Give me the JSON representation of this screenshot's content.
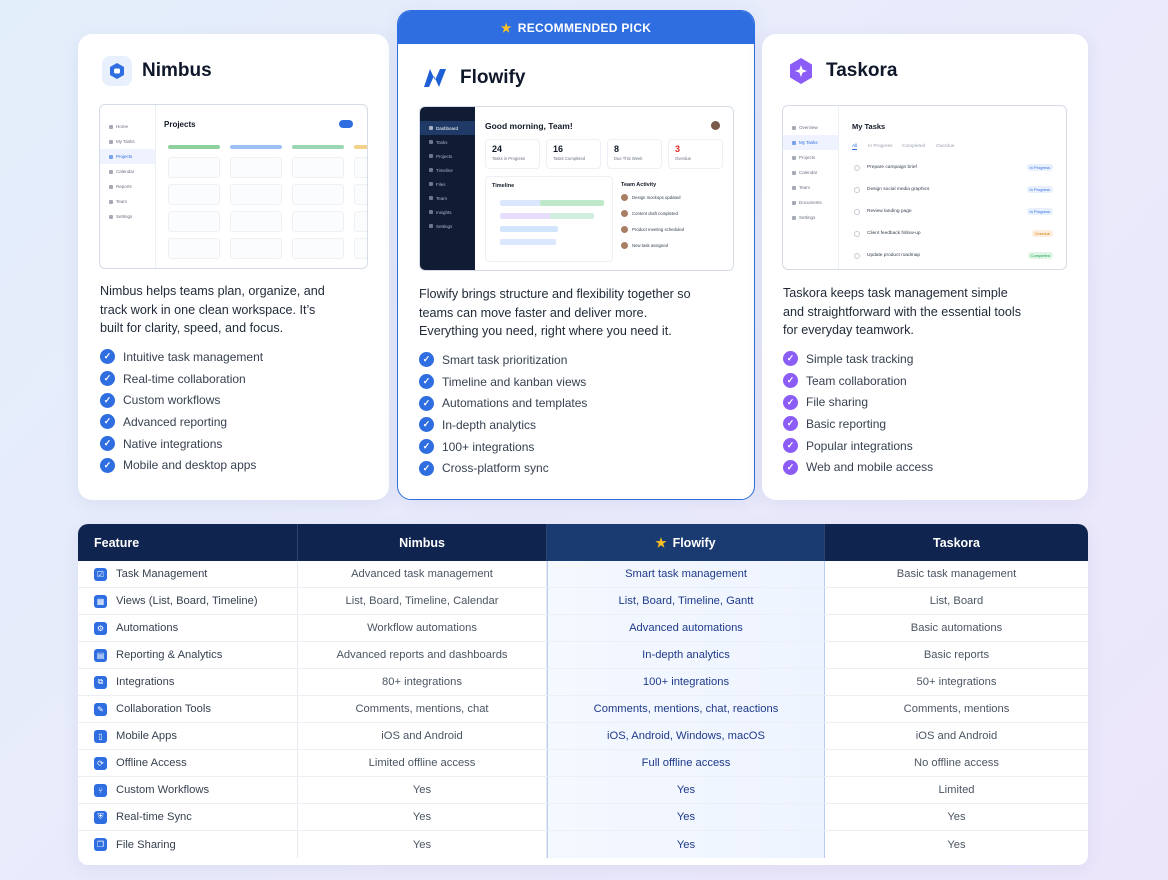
{
  "nimbus": {
    "name": "Nimbus",
    "description": "Nimbus helps teams plan, organize, and track work in one clean workspace. It’s built for clarity, speed, and focus.",
    "features": [
      "Intuitive task management",
      "Real-time collaboration",
      "Custom workflows",
      "Advanced reporting",
      "Native integrations",
      "Mobile and desktop apps"
    ],
    "preview": {
      "sidebar": [
        "Home",
        "My Tasks",
        "Projects",
        "Calendar",
        "Reports",
        "Team",
        "Settings"
      ],
      "title": "Projects"
    }
  },
  "flowify": {
    "banner": "RECOMMENDED PICK",
    "name": "Flowify",
    "description": "Flowify brings structure and flexibility together so teams can move faster and deliver more. Everything you need, right where you need it.",
    "features": [
      "Smart task prioritization",
      "Timeline and kanban views",
      "Automations and templates",
      "In-depth analytics",
      "100+ integrations",
      "Cross-platform sync"
    ],
    "preview": {
      "sidebar": [
        "Dashboard",
        "Tasks",
        "Projects",
        "Timeline",
        "Files",
        "Team",
        "Insights",
        "Settings"
      ],
      "greeting": "Good morning, Team!",
      "stats": [
        {
          "value": "24",
          "label": "Tasks in Progress"
        },
        {
          "value": "16",
          "label": "Tasks Completed"
        },
        {
          "value": "8",
          "label": "Due This Week"
        },
        {
          "value": "3",
          "label": "Overdue"
        }
      ],
      "timeline_title": "Timeline",
      "activity_title": "Team Activity",
      "activity": [
        "Design mockups updated",
        "Content draft completed",
        "Product meeting scheduled",
        "New task assigned"
      ]
    }
  },
  "taskora": {
    "name": "Taskora",
    "description": "Taskora keeps task management simple and straightforward with the essential tools for everyday teamwork.",
    "features": [
      "Simple task tracking",
      "Team collaboration",
      "File sharing",
      "Basic reporting",
      "Popular integrations",
      "Web and mobile access"
    ],
    "preview": {
      "sidebar": [
        "Overview",
        "My Tasks",
        "Projects",
        "Calendar",
        "Team",
        "Documents",
        "Settings"
      ],
      "title": "My Tasks",
      "tabs": [
        "All",
        "In Progress",
        "Completed",
        "Overdue"
      ],
      "tasks": [
        {
          "name": "Prepare campaign brief",
          "status": "In Progress"
        },
        {
          "name": "Design social media graphics",
          "status": "In Progress"
        },
        {
          "name": "Review landing page",
          "status": "In Progress"
        },
        {
          "name": "Client feedback follow-up",
          "status": "Overdue"
        },
        {
          "name": "Update product roadmap",
          "status": "Completed"
        }
      ]
    }
  },
  "table": {
    "headers": [
      "Feature",
      "Nimbus",
      "Flowify",
      "Taskora"
    ],
    "rows": [
      [
        "Task Management",
        "Advanced task management",
        "Smart task management",
        "Basic task management"
      ],
      [
        "Views (List, Board, Timeline)",
        "List, Board, Timeline, Calendar",
        "List, Board, Timeline, Gantt",
        "List, Board"
      ],
      [
        "Automations",
        "Workflow automations",
        "Advanced automations",
        "Basic automations"
      ],
      [
        "Reporting & Analytics",
        "Advanced reports and dashboards",
        "In-depth analytics",
        "Basic reports"
      ],
      [
        "Integrations",
        "80+ integrations",
        "100+ integrations",
        "50+ integrations"
      ],
      [
        "Collaboration Tools",
        "Comments, mentions, chat",
        "Comments, mentions, chat, reactions",
        "Comments, mentions"
      ],
      [
        "Mobile Apps",
        "iOS and Android",
        "iOS, Android, Windows, macOS",
        "iOS and Android"
      ],
      [
        "Offline Access",
        "Limited offline access",
        "Full offline access",
        "No offline access"
      ],
      [
        "Custom Workflows",
        "Yes",
        "Yes",
        "Limited"
      ],
      [
        "Real-time Sync",
        "Yes",
        "Yes",
        "Yes"
      ],
      [
        "File Sharing",
        "Yes",
        "Yes",
        "Yes"
      ]
    ]
  },
  "colors": {
    "accent": "#2f6ee0",
    "header_navy": "#0f2550",
    "taskora_purple": "#8b5cf6"
  }
}
